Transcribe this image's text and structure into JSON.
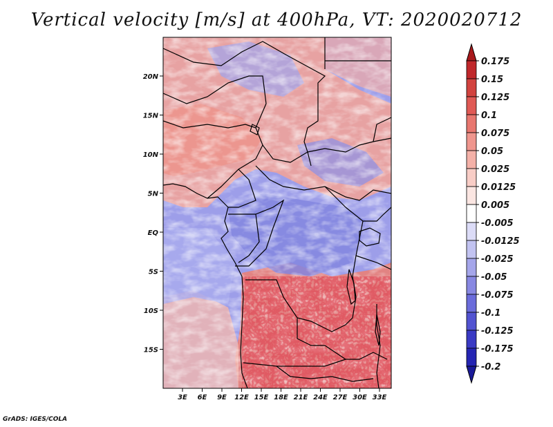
{
  "title": "Vertical velocity [m/s] at 400hPa, VT: 2020020712",
  "credit": "GrADS: IGES/COLA",
  "map": {
    "lat_ticks": [
      "20N",
      "15N",
      "10N",
      "5N",
      "EQ",
      "5S",
      "10S",
      "15S"
    ],
    "lon_ticks": [
      "3E",
      "6E",
      "9E",
      "12E",
      "15E",
      "18E",
      "21E",
      "24E",
      "27E",
      "30E",
      "33E"
    ]
  },
  "colorbar": {
    "labels": [
      "0.175",
      "0.15",
      "0.125",
      "0.1",
      "0.075",
      "0.05",
      "0.025",
      "0.0125",
      "0.005",
      "-0.005",
      "-0.0125",
      "-0.025",
      "-0.05",
      "-0.075",
      "-0.1",
      "-0.125",
      "-0.175",
      "-0.2"
    ],
    "colors": [
      "#a8191c",
      "#c0282b",
      "#d2433f",
      "#e05a55",
      "#e8776f",
      "#ef968e",
      "#f4b1a8",
      "#f8cdc6",
      "#fbe6e2",
      "#ffffff",
      "#dcdcf7",
      "#c2c3f1",
      "#a5a6ea",
      "#8888e2",
      "#6b6cdb",
      "#5253d1",
      "#3a3ac4",
      "#2525b3",
      "#1a1a99"
    ]
  }
}
